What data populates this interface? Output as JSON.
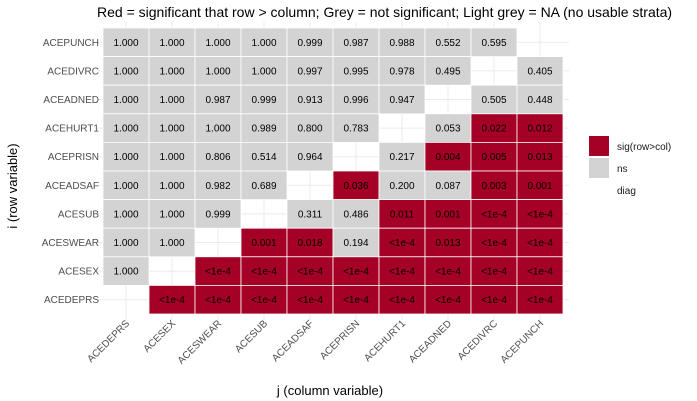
{
  "chart_data": {
    "type": "heatmap",
    "title": "Red = significant that row > column; Grey = not significant; Light grey = NA (no usable strata)",
    "xlabel": "j (column variable)",
    "ylabel": "i (row variable)",
    "columns": [
      "ACEDEPRS",
      "ACESEX",
      "ACESWEAR",
      "ACESUB",
      "ACEADSAF",
      "ACEPRISN",
      "ACEHURT1",
      "ACEADNED",
      "ACEDIVRC",
      "ACEPUNCH"
    ],
    "rows": [
      "ACEPUNCH",
      "ACEDIVRC",
      "ACEADNED",
      "ACEHURT1",
      "ACEPRISN",
      "ACEADSAF",
      "ACESUB",
      "ACESWEAR",
      "ACESEX",
      "ACEDEPRS"
    ],
    "cells": [
      [
        {
          "label": "1.000",
          "status": "ns"
        },
        {
          "label": "1.000",
          "status": "ns"
        },
        {
          "label": "1.000",
          "status": "ns"
        },
        {
          "label": "1.000",
          "status": "ns"
        },
        {
          "label": "0.999",
          "status": "ns"
        },
        {
          "label": "0.987",
          "status": "ns"
        },
        {
          "label": "0.988",
          "status": "ns"
        },
        {
          "label": "0.552",
          "status": "ns"
        },
        {
          "label": "0.595",
          "status": "ns"
        },
        {
          "label": "",
          "status": "diag"
        }
      ],
      [
        {
          "label": "1.000",
          "status": "ns"
        },
        {
          "label": "1.000",
          "status": "ns"
        },
        {
          "label": "1.000",
          "status": "ns"
        },
        {
          "label": "1.000",
          "status": "ns"
        },
        {
          "label": "0.997",
          "status": "ns"
        },
        {
          "label": "0.995",
          "status": "ns"
        },
        {
          "label": "0.978",
          "status": "ns"
        },
        {
          "label": "0.495",
          "status": "ns"
        },
        {
          "label": "",
          "status": "diag"
        },
        {
          "label": "0.405",
          "status": "ns"
        }
      ],
      [
        {
          "label": "1.000",
          "status": "ns"
        },
        {
          "label": "1.000",
          "status": "ns"
        },
        {
          "label": "0.987",
          "status": "ns"
        },
        {
          "label": "0.999",
          "status": "ns"
        },
        {
          "label": "0.913",
          "status": "ns"
        },
        {
          "label": "0.996",
          "status": "ns"
        },
        {
          "label": "0.947",
          "status": "ns"
        },
        {
          "label": "",
          "status": "diag"
        },
        {
          "label": "0.505",
          "status": "ns"
        },
        {
          "label": "0.448",
          "status": "ns"
        }
      ],
      [
        {
          "label": "1.000",
          "status": "ns"
        },
        {
          "label": "1.000",
          "status": "ns"
        },
        {
          "label": "1.000",
          "status": "ns"
        },
        {
          "label": "0.989",
          "status": "ns"
        },
        {
          "label": "0.800",
          "status": "ns"
        },
        {
          "label": "0.783",
          "status": "ns"
        },
        {
          "label": "",
          "status": "diag"
        },
        {
          "label": "0.053",
          "status": "ns"
        },
        {
          "label": "0.022",
          "status": "sig"
        },
        {
          "label": "0.012",
          "status": "sig"
        }
      ],
      [
        {
          "label": "1.000",
          "status": "ns"
        },
        {
          "label": "1.000",
          "status": "ns"
        },
        {
          "label": "0.806",
          "status": "ns"
        },
        {
          "label": "0.514",
          "status": "ns"
        },
        {
          "label": "0.964",
          "status": "ns"
        },
        {
          "label": "",
          "status": "diag"
        },
        {
          "label": "0.217",
          "status": "ns"
        },
        {
          "label": "0.004",
          "status": "sig"
        },
        {
          "label": "0.005",
          "status": "sig"
        },
        {
          "label": "0.013",
          "status": "sig"
        }
      ],
      [
        {
          "label": "1.000",
          "status": "ns"
        },
        {
          "label": "1.000",
          "status": "ns"
        },
        {
          "label": "0.982",
          "status": "ns"
        },
        {
          "label": "0.689",
          "status": "ns"
        },
        {
          "label": "",
          "status": "diag"
        },
        {
          "label": "0.036",
          "status": "sig"
        },
        {
          "label": "0.200",
          "status": "ns"
        },
        {
          "label": "0.087",
          "status": "ns"
        },
        {
          "label": "0.003",
          "status": "sig"
        },
        {
          "label": "0.001",
          "status": "sig"
        }
      ],
      [
        {
          "label": "1.000",
          "status": "ns"
        },
        {
          "label": "1.000",
          "status": "ns"
        },
        {
          "label": "0.999",
          "status": "ns"
        },
        {
          "label": "",
          "status": "diag"
        },
        {
          "label": "0.311",
          "status": "ns"
        },
        {
          "label": "0.486",
          "status": "ns"
        },
        {
          "label": "0.011",
          "status": "sig"
        },
        {
          "label": "0.001",
          "status": "sig"
        },
        {
          "label": "<1e-4",
          "status": "sig"
        },
        {
          "label": "<1e-4",
          "status": "sig"
        }
      ],
      [
        {
          "label": "1.000",
          "status": "ns"
        },
        {
          "label": "1.000",
          "status": "ns"
        },
        {
          "label": "",
          "status": "diag"
        },
        {
          "label": "0.001",
          "status": "sig"
        },
        {
          "label": "0.018",
          "status": "sig"
        },
        {
          "label": "0.194",
          "status": "ns"
        },
        {
          "label": "<1e-4",
          "status": "sig"
        },
        {
          "label": "0.013",
          "status": "sig"
        },
        {
          "label": "<1e-4",
          "status": "sig"
        },
        {
          "label": "<1e-4",
          "status": "sig"
        }
      ],
      [
        {
          "label": "1.000",
          "status": "ns"
        },
        {
          "label": "",
          "status": "diag"
        },
        {
          "label": "<1e-4",
          "status": "sig"
        },
        {
          "label": "<1e-4",
          "status": "sig"
        },
        {
          "label": "<1e-4",
          "status": "sig"
        },
        {
          "label": "<1e-4",
          "status": "sig"
        },
        {
          "label": "<1e-4",
          "status": "sig"
        },
        {
          "label": "<1e-4",
          "status": "sig"
        },
        {
          "label": "<1e-4",
          "status": "sig"
        },
        {
          "label": "<1e-4",
          "status": "sig"
        }
      ],
      [
        {
          "label": "",
          "status": "diag"
        },
        {
          "label": "<1e-4",
          "status": "sig"
        },
        {
          "label": "<1e-4",
          "status": "sig"
        },
        {
          "label": "<1e-4",
          "status": "sig"
        },
        {
          "label": "<1e-4",
          "status": "sig"
        },
        {
          "label": "<1e-4",
          "status": "sig"
        },
        {
          "label": "<1e-4",
          "status": "sig"
        },
        {
          "label": "<1e-4",
          "status": "sig"
        },
        {
          "label": "<1e-4",
          "status": "sig"
        },
        {
          "label": "<1e-4",
          "status": "sig"
        }
      ]
    ],
    "legend": [
      {
        "key": "sig",
        "label": "sig(row>col)",
        "color": "#a50026"
      },
      {
        "key": "ns",
        "label": "ns",
        "color": "#d3d3d3"
      },
      {
        "key": "diag",
        "label": "diag",
        "color": "#ffffff"
      }
    ],
    "legend_position": "right"
  }
}
